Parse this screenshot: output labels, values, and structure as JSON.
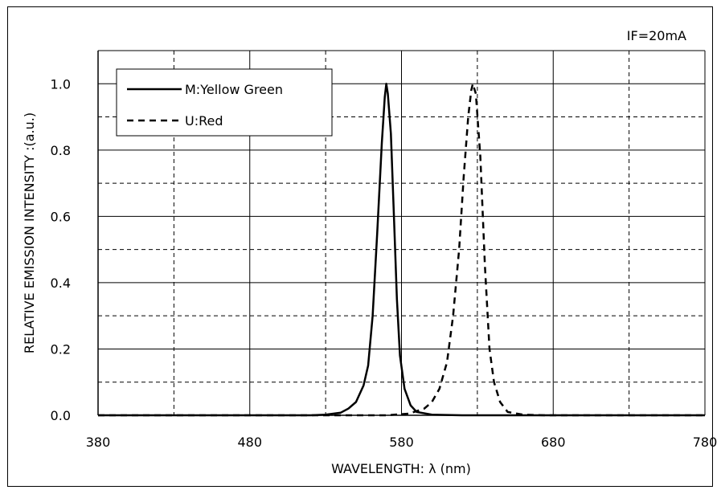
{
  "chart_data": {
    "type": "line",
    "title": "",
    "annotation": "IF=20mA",
    "xlabel": "WAVELENGTH: λ (nm)",
    "ylabel": "RELATIVE  EMISSION INTENSITY :(a.u.)",
    "xlim": [
      380,
      780
    ],
    "ylim": [
      0,
      1.0
    ],
    "x_ticks": [
      380,
      480,
      580,
      680,
      780
    ],
    "x_tick_labels": [
      "380",
      "480",
      "580",
      "680",
      "780"
    ],
    "y_ticks": [
      0,
      0.2,
      0.4,
      0.6,
      0.8,
      1.0
    ],
    "y_tick_labels": [
      "0.0",
      "0.2",
      "0.4",
      "0.6",
      "0.8",
      "1.0"
    ],
    "grid": true,
    "legend_position": "top-left",
    "series": [
      {
        "name": "M:Yellow Green",
        "line_style": "solid",
        "color": "#000000",
        "points": [
          [
            380,
            0
          ],
          [
            520,
            0
          ],
          [
            530,
            0.002
          ],
          [
            540,
            0.008
          ],
          [
            545,
            0.02
          ],
          [
            550,
            0.04
          ],
          [
            555,
            0.09
          ],
          [
            558,
            0.15
          ],
          [
            561,
            0.3
          ],
          [
            564,
            0.55
          ],
          [
            567,
            0.82
          ],
          [
            569,
            0.96
          ],
          [
            570,
            1.0
          ],
          [
            571,
            0.97
          ],
          [
            573,
            0.85
          ],
          [
            575,
            0.6
          ],
          [
            577,
            0.35
          ],
          [
            579,
            0.18
          ],
          [
            582,
            0.08
          ],
          [
            586,
            0.03
          ],
          [
            590,
            0.01
          ],
          [
            600,
            0.002
          ],
          [
            620,
            0
          ],
          [
            780,
            0
          ]
        ]
      },
      {
        "name": "U:Red",
        "line_style": "dashed",
        "color": "#000000",
        "points": [
          [
            380,
            0
          ],
          [
            570,
            0
          ],
          [
            585,
            0.005
          ],
          [
            595,
            0.02
          ],
          [
            600,
            0.04
          ],
          [
            605,
            0.08
          ],
          [
            610,
            0.16
          ],
          [
            614,
            0.3
          ],
          [
            618,
            0.5
          ],
          [
            621,
            0.72
          ],
          [
            624,
            0.9
          ],
          [
            626,
            0.98
          ],
          [
            627,
            1.0
          ],
          [
            629,
            0.97
          ],
          [
            632,
            0.78
          ],
          [
            635,
            0.45
          ],
          [
            638,
            0.2
          ],
          [
            641,
            0.1
          ],
          [
            645,
            0.04
          ],
          [
            650,
            0.01
          ],
          [
            660,
            0.002
          ],
          [
            675,
            0
          ],
          [
            780,
            0
          ]
        ]
      }
    ]
  }
}
